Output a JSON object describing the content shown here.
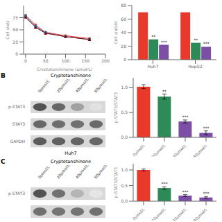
{
  "chart_data": [
    {
      "type": "line",
      "x": [
        0,
        25,
        50,
        100,
        160
      ],
      "series": [
        {
          "color": "#e8392a",
          "marker": "circle",
          "values": [
            80,
            60,
            45,
            38,
            32
          ]
        },
        {
          "color": "#1a75bc",
          "marker": "square",
          "values": [
            78,
            57,
            44,
            36,
            30
          ]
        },
        {
          "color": "#8b0000",
          "marker": "triangle",
          "values": [
            76,
            55,
            43,
            36,
            30
          ]
        }
      ],
      "xlabel": "Cryptotanshinone (μmol/L)",
      "ylabel": "Cell viabi",
      "xlim": [
        -5,
        200
      ],
      "xticks": [
        0,
        50,
        100,
        150,
        200
      ],
      "ylim": [
        0,
        100
      ],
      "yticks": [
        0,
        25,
        50,
        75
      ]
    },
    {
      "type": "bar",
      "categories": [
        "Huh7",
        "HepG2"
      ],
      "series": [
        {
          "color": "#e8392a",
          "values": [
            70,
            70
          ]
        },
        {
          "color": "#2e8b57",
          "values": [
            30,
            25
          ],
          "annotations": [
            "**",
            "**"
          ]
        },
        {
          "color": "#7b4fa6",
          "values": [
            22,
            19
          ],
          "annotations": [
            "***",
            "***"
          ]
        }
      ],
      "ylabel": "Cell viabilit",
      "ylim": [
        0,
        80
      ],
      "yticks": [
        0,
        20,
        40,
        60,
        80
      ]
    },
    {
      "type": "blot",
      "panel_label": "B",
      "title": "Cryptotanshinone",
      "categories": [
        "0μmol/L",
        "20μmol/L",
        "40μmol/L",
        "80μmol/L"
      ],
      "series": [
        {
          "name": "p-STAT3",
          "values": [
            0.85,
            0.75,
            0.45,
            0.12
          ]
        },
        {
          "name": "STAT3",
          "values": [
            0.75,
            0.72,
            0.7,
            0.73
          ]
        },
        {
          "name": "GAPDH",
          "values": [
            0.8,
            0.78,
            0.76,
            0.75
          ]
        }
      ],
      "xlabel": "Huh7"
    },
    {
      "type": "bar",
      "categories": [
        "0μmol/L",
        "20μmol/L",
        "40μmol/L",
        "80μmol/L"
      ],
      "values": [
        1.02,
        0.82,
        0.32,
        0.09
      ],
      "errors": [
        0.04,
        0.05,
        0.03,
        0.04
      ],
      "colors": [
        "#e8392a",
        "#2e8b57",
        "#7b4fa6",
        "#7b4fa6"
      ],
      "annotations": [
        null,
        "**",
        "***",
        "***"
      ],
      "ylabel": "p-STAT3/STAT3",
      "ylim": [
        0,
        1.2
      ],
      "yticks": [
        {
          "value": 0,
          "label": "0.0"
        },
        0.5,
        {
          "value": 1,
          "label": "1.0"
        }
      ]
    },
    {
      "type": "blot",
      "panel_label": "C",
      "title": "Cryptotanshinone",
      "categories": [
        "0μmol/L",
        "20μmol/L",
        "40μmol/L",
        "80μmol/L"
      ],
      "series": [
        {
          "name": "p-STAT3",
          "values": [
            0.85,
            0.7,
            0.35,
            0.1
          ]
        },
        {
          "name": null,
          "values": [
            0.7,
            0.68,
            0.68,
            0.7
          ]
        }
      ]
    },
    {
      "type": "bar",
      "categories": [
        "0μmol/L",
        "20μmol/L",
        "40μmol/L",
        "80μmol/L"
      ],
      "values": [
        1.0,
        0.42,
        0.18,
        0.12
      ],
      "errors": [
        0.03,
        0.04,
        0.03,
        0.03
      ],
      "colors": [
        "#e8392a",
        "#2e8b57",
        "#7b4fa6",
        "#7b4fa6"
      ],
      "annotations": [
        null,
        "***",
        "***",
        "***"
      ],
      "ylabel": "p-STAT3/STAT3",
      "ylim": [
        0,
        1.2
      ],
      "yticks": [
        {
          "value": 0,
          "label": "0.0"
        },
        0.5,
        {
          "value": 1,
          "label": "1.0"
        }
      ]
    }
  ]
}
